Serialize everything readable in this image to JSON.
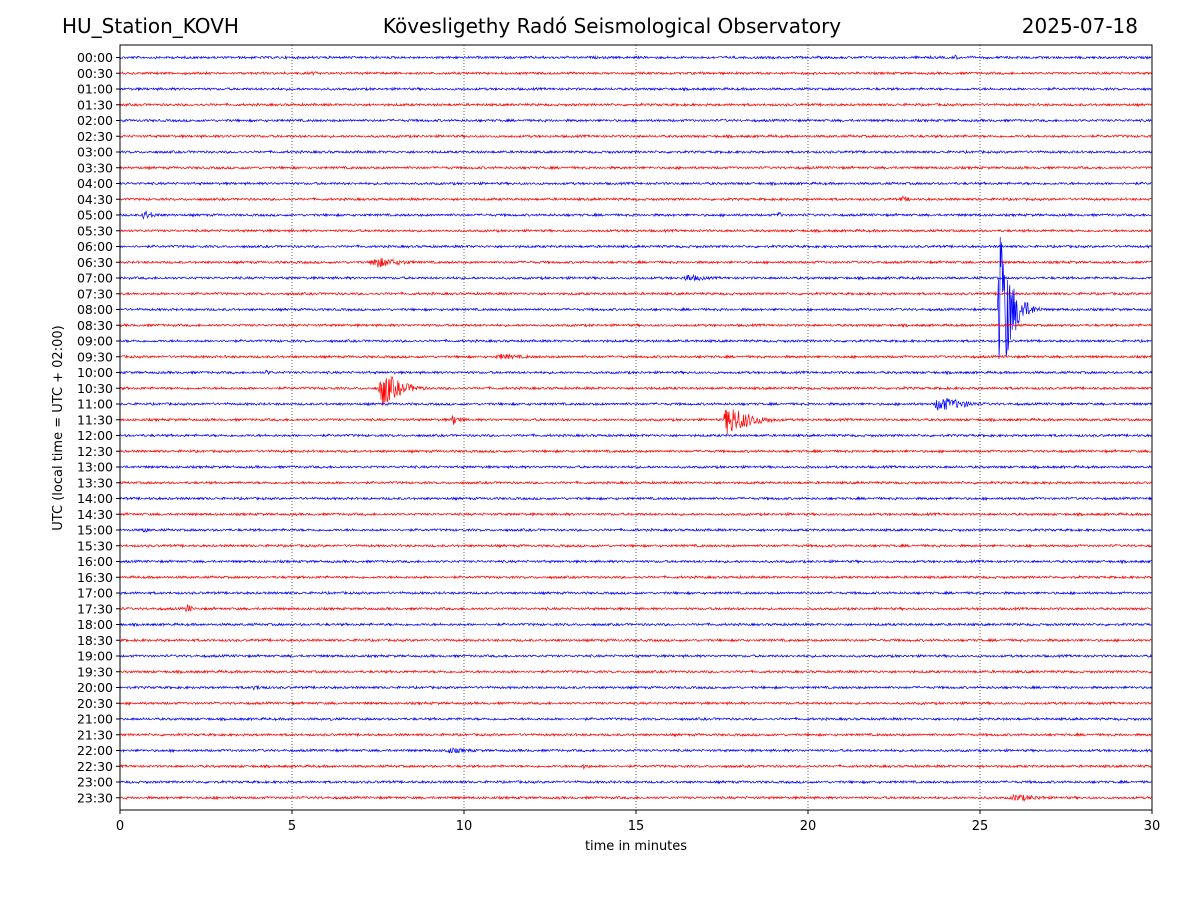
{
  "header": {
    "station": "HU_Station_KOVH",
    "title": "Kövesligethy Radó Seismological Observatory",
    "date": "2025-07-18"
  },
  "chart_data": {
    "type": "line",
    "xlabel": "time in minutes",
    "ylabel": "UTC (local time = UTC + 02:00)",
    "xlim": [
      0,
      30
    ],
    "x_ticks": [
      0,
      5,
      10,
      15,
      20,
      25,
      30
    ],
    "grid": "vertical dotted at x ticks",
    "colors": {
      "even_rows": "#0000ff",
      "odd_rows": "#ff0000"
    },
    "rows": [
      "00:00",
      "00:30",
      "01:00",
      "01:30",
      "02:00",
      "02:30",
      "03:00",
      "03:30",
      "04:00",
      "04:30",
      "05:00",
      "05:30",
      "06:00",
      "06:30",
      "07:00",
      "07:30",
      "08:00",
      "08:30",
      "09:00",
      "09:30",
      "10:00",
      "10:30",
      "11:00",
      "11:30",
      "12:00",
      "12:30",
      "13:00",
      "13:30",
      "14:00",
      "14:30",
      "15:00",
      "15:30",
      "16:00",
      "16:30",
      "17:00",
      "17:30",
      "18:00",
      "18:30",
      "19:00",
      "19:30",
      "20:00",
      "20:30",
      "21:00",
      "21:30",
      "22:00",
      "22:30",
      "23:00",
      "23:30"
    ],
    "events": [
      {
        "row": "00:00",
        "t": 24.2,
        "amp": 3,
        "dur": 0.8
      },
      {
        "row": "00:30",
        "t": 5.5,
        "amp": 2,
        "dur": 1.5
      },
      {
        "row": "04:30",
        "t": 22.6,
        "amp": 3,
        "dur": 1.8
      },
      {
        "row": "05:00",
        "t": 0.6,
        "amp": 5,
        "dur": 1.6
      },
      {
        "row": "05:00",
        "t": 19.1,
        "amp": 4,
        "dur": 0.5
      },
      {
        "row": "06:30",
        "t": 7.2,
        "amp": 6,
        "dur": 3.5
      },
      {
        "row": "07:00",
        "t": 16.3,
        "amp": 4,
        "dur": 3.0
      },
      {
        "row": "08:00",
        "t": 25.5,
        "amp": 92,
        "dur": 1.4
      },
      {
        "row": "09:30",
        "t": 10.8,
        "amp": 3,
        "dur": 4.5
      },
      {
        "row": "10:00",
        "t": 4.2,
        "amp": 3,
        "dur": 0.8
      },
      {
        "row": "10:30",
        "t": 7.5,
        "amp": 20,
        "dur": 2.2
      },
      {
        "row": "11:00",
        "t": 23.6,
        "amp": 8,
        "dur": 3.5
      },
      {
        "row": "11:30",
        "t": 9.6,
        "amp": 6,
        "dur": 1.2
      },
      {
        "row": "11:30",
        "t": 17.5,
        "amp": 17,
        "dur": 2.8
      },
      {
        "row": "15:00",
        "t": 0.6,
        "amp": 3,
        "dur": 1.2
      },
      {
        "row": "17:30",
        "t": 1.9,
        "amp": 7,
        "dur": 0.6
      },
      {
        "row": "20:00",
        "t": 3.8,
        "amp": 3,
        "dur": 2.0
      },
      {
        "row": "21:00",
        "t": 6.1,
        "amp": 3,
        "dur": 0.4
      },
      {
        "row": "22:00",
        "t": 9.3,
        "amp": 3,
        "dur": 4.2
      },
      {
        "row": "22:30",
        "t": 13.4,
        "amp": 3,
        "dur": 1.2
      },
      {
        "row": "23:30",
        "t": 25.8,
        "amp": 4,
        "dur": 4.0
      }
    ]
  }
}
